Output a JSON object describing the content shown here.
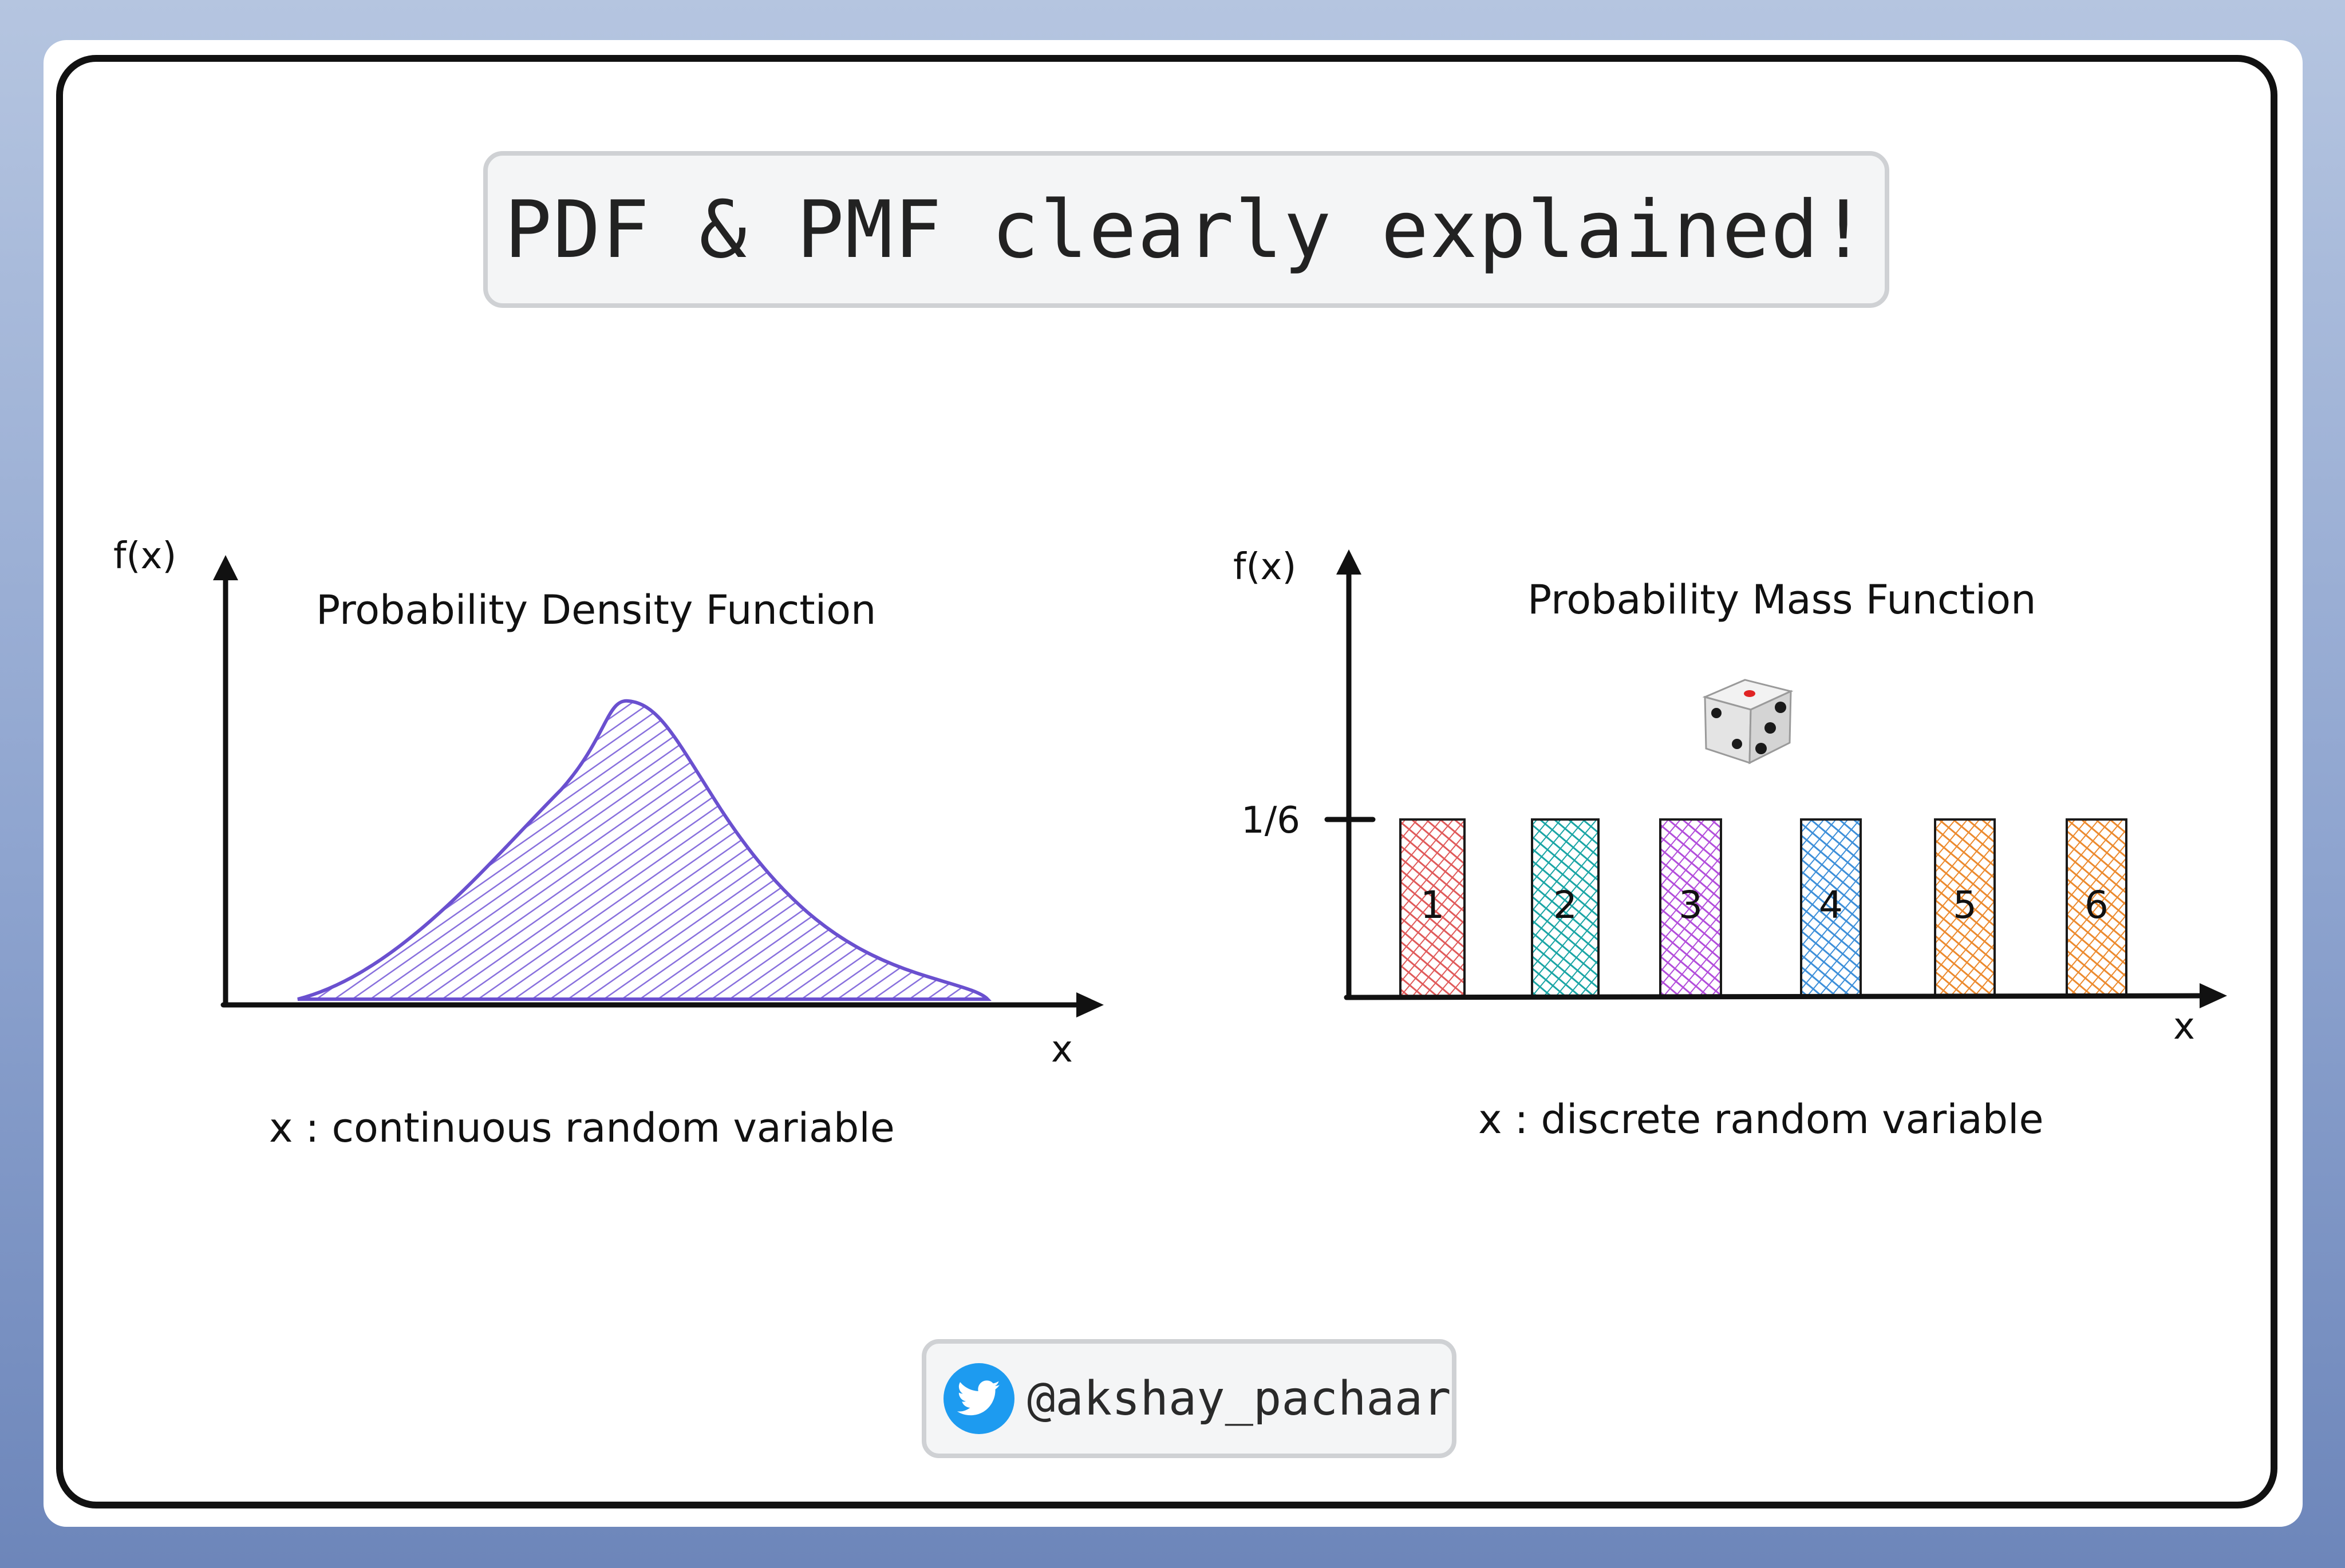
{
  "title": "PDF & PMF clearly explained!",
  "handle": "@akshay_pachaar",
  "icons": {
    "social": "twitter-bird-icon",
    "dice": "dice-icon"
  },
  "pdf": {
    "heading": "Probability Density Function",
    "y_label": "f(x)",
    "x_label": "x",
    "caption": "x : continuous random variable",
    "fill_color": "#7b61d9"
  },
  "pmf": {
    "heading": "Probability Mass Function",
    "y_label": "f(x)",
    "x_label": "x",
    "caption": "x : discrete random variable",
    "y_tick": "1/6",
    "bars": [
      {
        "label": "1",
        "color": "#e05a5a"
      },
      {
        "label": "2",
        "color": "#1aa5a5"
      },
      {
        "label": "3",
        "color": "#b24ddb"
      },
      {
        "label": "4",
        "color": "#3d8fd9"
      },
      {
        "label": "5",
        "color": "#ec8a2e"
      },
      {
        "label": "6",
        "color": "#ec8a2e"
      }
    ]
  }
}
